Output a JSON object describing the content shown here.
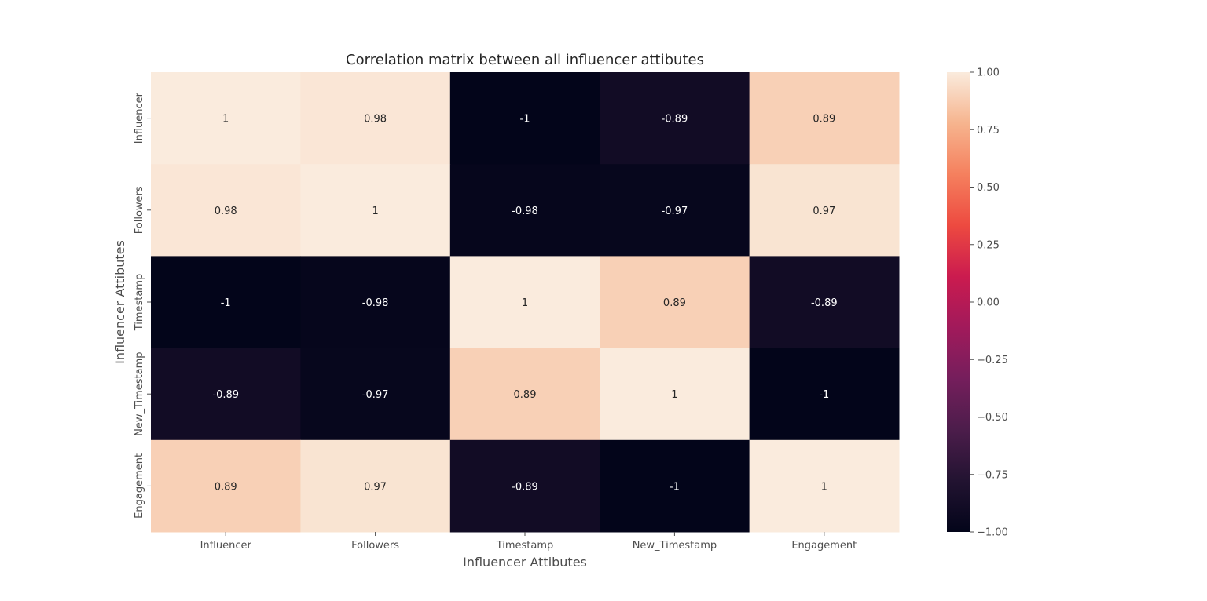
{
  "chart_data": {
    "type": "heatmap",
    "title": "Correlation matrix between all influencer attibutes",
    "xlabel": "Influencer Attibutes",
    "ylabel": "Influencer Attibutes",
    "x_categories": [
      "Influencer",
      "Followers",
      "Timestamp",
      "New_Timestamp",
      "Engagement"
    ],
    "y_categories": [
      "Influencer",
      "Followers",
      "Timestamp",
      "New_Timestamp",
      "Engagement"
    ],
    "values": [
      [
        1,
        0.98,
        -1,
        -0.89,
        0.89
      ],
      [
        0.98,
        1,
        -0.98,
        -0.97,
        0.97
      ],
      [
        -1,
        -0.98,
        1,
        0.89,
        -0.89
      ],
      [
        -0.89,
        -0.97,
        0.89,
        1,
        -1
      ],
      [
        0.89,
        0.97,
        -0.89,
        -1,
        1
      ]
    ],
    "annotations": [
      [
        "1",
        "0.98",
        "-1",
        "-0.89",
        "0.89"
      ],
      [
        "0.98",
        "1",
        "-0.98",
        "-0.97",
        "0.97"
      ],
      [
        "-1",
        "-0.98",
        "1",
        "0.89",
        "-0.89"
      ],
      [
        "-0.89",
        "-0.97",
        "0.89",
        "1",
        "-1"
      ],
      [
        "0.89",
        "0.97",
        "-0.89",
        "-1",
        "1"
      ]
    ],
    "colormap": "rocket",
    "vmin": -1,
    "vmax": 1,
    "colorbar": {
      "ticks": [
        1.0,
        0.75,
        0.5,
        0.25,
        0.0,
        -0.25,
        -0.5,
        -0.75,
        -1.0
      ],
      "tick_labels": [
        "1.00",
        "0.75",
        "0.50",
        "0.25",
        "0.00",
        "−0.25",
        "−0.50",
        "−0.75",
        "−1.00"
      ],
      "placement": "right"
    },
    "colormap_stops": [
      "#03051a",
      "#221331",
      "#4c1d4b",
      "#751e5c",
      "#a11a5b",
      "#cb1b4f",
      "#ed4a40",
      "#f5805e",
      "#f6b48e",
      "#faebdd"
    ],
    "grid": false
  }
}
